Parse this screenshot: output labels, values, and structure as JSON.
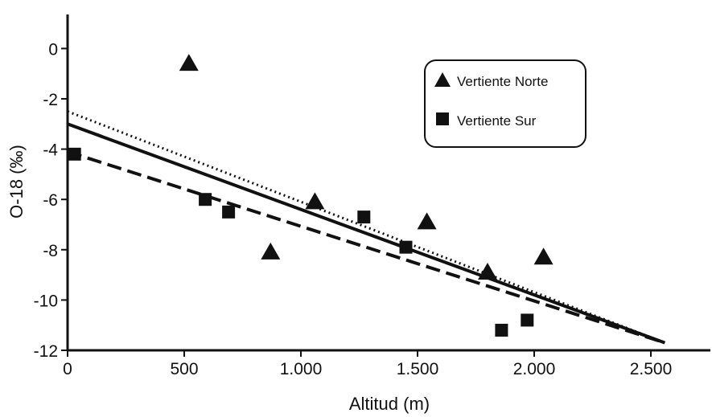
{
  "chart_data": {
    "type": "scatter",
    "title": "",
    "xlabel": "Altitud (m)",
    "ylabel": "O-18 (‰)",
    "xlim": [
      0,
      2750
    ],
    "ylim": [
      -12,
      1
    ],
    "x_ticks": [
      0,
      500,
      1000,
      1500,
      2000,
      2500
    ],
    "x_tick_labels": [
      "0",
      "500",
      "1.000",
      "1.500",
      "2.000",
      "2.500"
    ],
    "y_ticks": [
      0,
      -2,
      -4,
      -6,
      -8,
      -10,
      -12
    ],
    "y_tick_labels": [
      "0",
      "-2",
      "-4",
      "-6",
      "-8",
      "-10",
      "-12"
    ],
    "grid": false,
    "legend_position": "top-right",
    "series": [
      {
        "name": "Vertiente Norte",
        "marker": "triangle",
        "color": "#111111",
        "points": [
          [
            520,
            -0.6
          ],
          [
            1060,
            -6.1
          ],
          [
            870,
            -8.1
          ],
          [
            1540,
            -6.9
          ],
          [
            1800,
            -8.9
          ],
          [
            2040,
            -8.3
          ]
        ]
      },
      {
        "name": "Vertiente Sur",
        "marker": "square",
        "color": "#111111",
        "points": [
          [
            30,
            -4.2
          ],
          [
            590,
            -6.0
          ],
          [
            690,
            -6.5
          ],
          [
            1270,
            -6.7
          ],
          [
            1450,
            -7.9
          ],
          [
            1860,
            -11.2
          ],
          [
            1970,
            -10.8
          ]
        ]
      }
    ],
    "trend_lines": [
      {
        "style": "solid",
        "from": [
          0,
          -3.0
        ],
        "to": [
          2560,
          -11.7
        ]
      },
      {
        "style": "dotted",
        "from": [
          0,
          -2.5
        ],
        "to": [
          2560,
          -11.7
        ]
      },
      {
        "style": "dashed",
        "from": [
          0,
          -4.1
        ],
        "to": [
          2560,
          -11.7
        ]
      }
    ]
  }
}
